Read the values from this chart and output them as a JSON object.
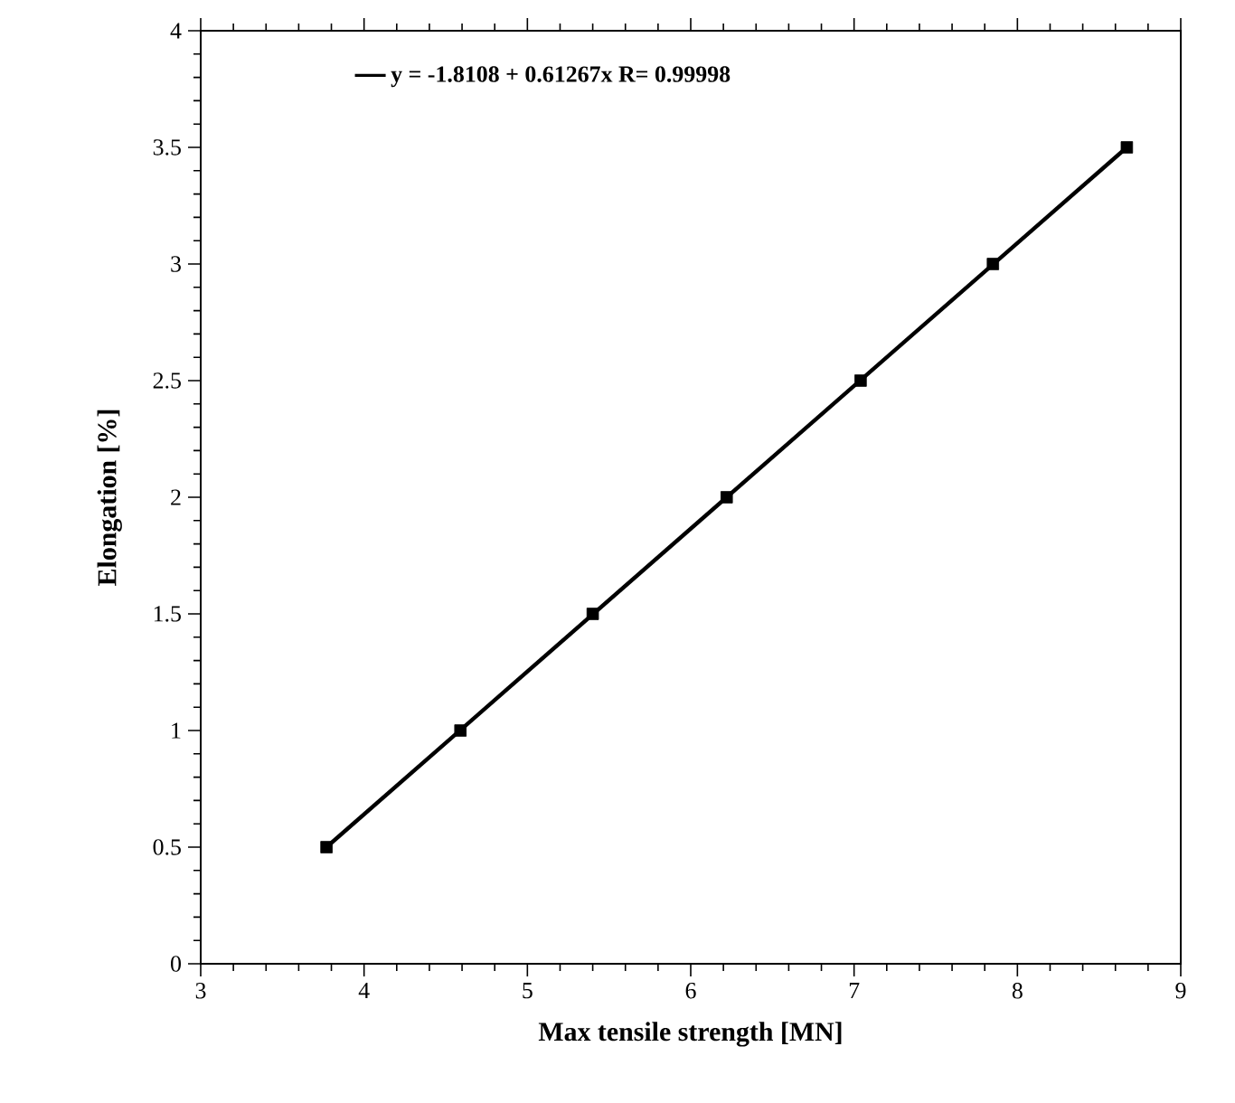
{
  "chart_data": {
    "type": "line",
    "xlabel": "Max tensile strength [MN]",
    "ylabel": "Elongation [%]",
    "x": [
      3.77,
      4.59,
      5.4,
      6.22,
      7.04,
      7.85,
      8.67
    ],
    "series": [
      {
        "type": "scatter",
        "color": "#000000",
        "marker": "square",
        "values": [
          0.5,
          1,
          1.5,
          2,
          2.5,
          3,
          3.5
        ]
      },
      {
        "name": "y = -1.8108 + 0.61267x   R= 0.99998",
        "color": "#000000",
        "x": [
          3.77,
          8.67
        ],
        "values": [
          0.5,
          3.5
        ]
      }
    ],
    "xlim": [
      3,
      9
    ],
    "ylim": [
      0,
      4
    ],
    "xticks": [
      3,
      4,
      5,
      6,
      7,
      8,
      9
    ],
    "yticks": [
      0,
      0.5,
      1,
      1.5,
      2,
      2.5,
      3,
      3.5,
      4
    ],
    "legend": "top left",
    "grid": false
  }
}
